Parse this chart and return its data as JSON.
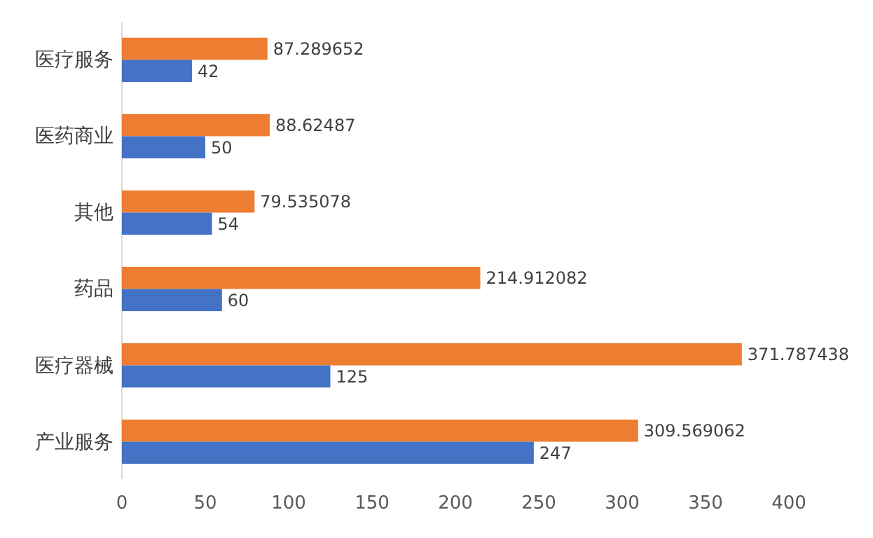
{
  "chart_data": {
    "type": "bar",
    "orientation": "horizontal",
    "categories": [
      "医疗服务",
      "医药商业",
      "其他",
      "药品",
      "医疗器械",
      "产业服务"
    ],
    "series": [
      {
        "color": "#ed7d31",
        "values": [
          87.289652,
          88.62487,
          79.535078,
          214.912082,
          371.787438,
          309.569062
        ]
      },
      {
        "color": "#4472c4",
        "values": [
          42,
          50,
          54,
          60,
          125,
          247
        ]
      }
    ],
    "xlim": [
      0,
      400
    ],
    "xticks": [
      0,
      50,
      100,
      150,
      200,
      250,
      300,
      350,
      400
    ],
    "data_labels": true,
    "grid": false
  }
}
